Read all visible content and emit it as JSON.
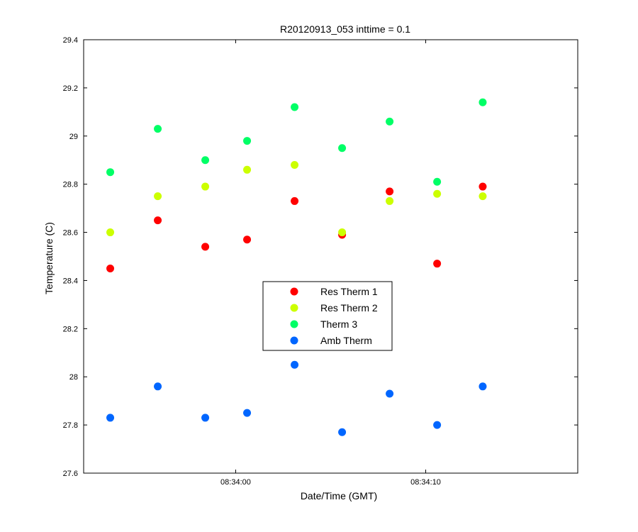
{
  "chart_data": {
    "type": "scatter",
    "title": "R20120913_053 inttime = 0.1",
    "xlabel": "Date/Time (GMT)",
    "ylabel": "Temperature (C)",
    "xlim": [
      "08:33:52",
      "08:34:18"
    ],
    "ylim": [
      27.6,
      29.4
    ],
    "yticks": [
      27.6,
      27.8,
      28,
      28.2,
      28.4,
      28.6,
      28.8,
      29,
      29.2,
      29.4
    ],
    "ytick_labels": [
      "27.6",
      "27.8",
      "28",
      "28.2",
      "28.4",
      "28.6",
      "28.8",
      "29",
      "29.2",
      "29.4"
    ],
    "xticks": [
      "08:34:00",
      "08:34:10"
    ],
    "xtick_labels": [
      "08:34:00",
      "08:34:10"
    ],
    "x": [
      "08:33:53.4",
      "08:33:55.9",
      "08:33:58.4",
      "08:34:00.6",
      "08:34:03.1",
      "08:34:05.6",
      "08:34:08.1",
      "08:34:10.6",
      "08:34:13.0"
    ],
    "series": [
      {
        "name": "Res Therm 1",
        "color": "#ff0000",
        "values": [
          28.45,
          28.65,
          28.54,
          28.57,
          28.73,
          28.59,
          28.77,
          28.47,
          28.79
        ]
      },
      {
        "name": "Res Therm 2",
        "color": "#ccff00",
        "values": [
          28.6,
          28.75,
          28.79,
          28.86,
          28.88,
          28.6,
          28.73,
          28.76,
          28.75
        ]
      },
      {
        "name": "Therm 3",
        "color": "#00ff66",
        "values": [
          28.85,
          29.03,
          28.9,
          28.98,
          29.12,
          28.95,
          29.06,
          28.81,
          29.14
        ]
      },
      {
        "name": "Amb Therm",
        "color": "#0066ff",
        "values": [
          27.83,
          27.96,
          27.83,
          27.85,
          28.05,
          27.77,
          27.93,
          27.8,
          27.96
        ]
      }
    ],
    "legend_position": "center",
    "grid": false
  }
}
